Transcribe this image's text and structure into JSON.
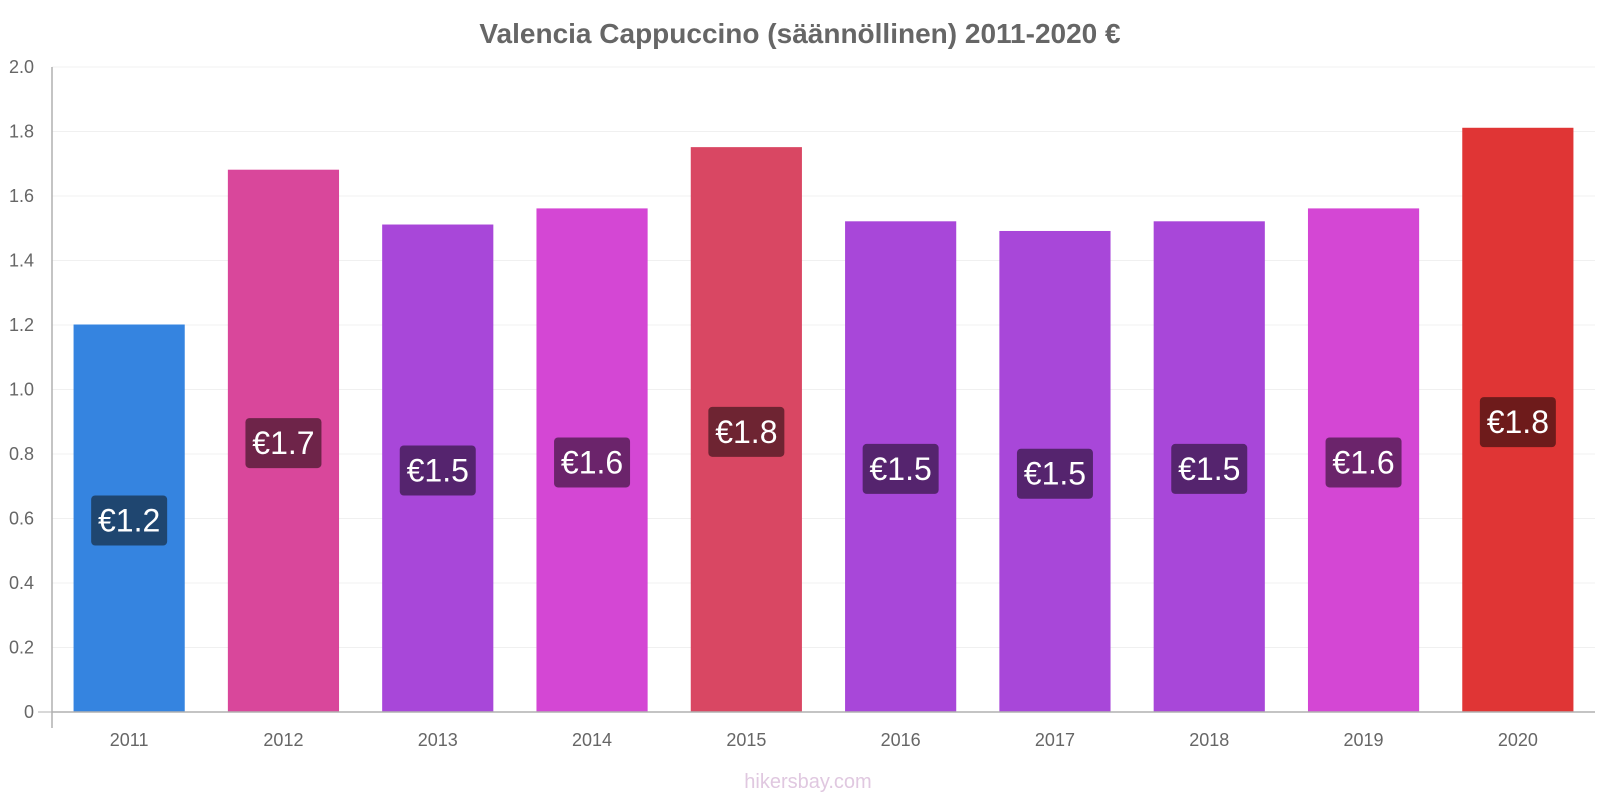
{
  "chart_data": {
    "type": "bar",
    "title": "Valencia Cappuccino (säännöllinen) 2011-2020 €",
    "xlabel": "",
    "ylabel": "",
    "ylim": [
      0,
      2.0
    ],
    "yticks": [
      0,
      0.2,
      0.4,
      0.6,
      0.8,
      1.0,
      1.2,
      1.4,
      1.6,
      1.8,
      2.0
    ],
    "ytick_labels": [
      "0",
      "0.2",
      "0.4",
      "0.6",
      "0.8",
      "1.0",
      "1.2",
      "1.4",
      "1.6",
      "1.8",
      "2.0"
    ],
    "categories": [
      "2011",
      "2012",
      "2013",
      "2014",
      "2015",
      "2016",
      "2017",
      "2018",
      "2019",
      "2020"
    ],
    "values": [
      1.2,
      1.68,
      1.51,
      1.56,
      1.75,
      1.52,
      1.49,
      1.52,
      1.56,
      1.81
    ],
    "data_labels": [
      "€1.2",
      "€1.7",
      "€1.5",
      "€1.6",
      "€1.8",
      "€1.5",
      "€1.5",
      "€1.5",
      "€1.6",
      "€1.8"
    ],
    "bar_colors": [
      "#3584e0",
      "#d9479b",
      "#a847d9",
      "#d447d4",
      "#d94763",
      "#a847d9",
      "#a847d9",
      "#a847d9",
      "#d447d4",
      "#e03535"
    ],
    "label_colors": [
      "#1f4670",
      "#6e2449",
      "#55246e",
      "#6b246b",
      "#6e2432",
      "#55246e",
      "#55246e",
      "#55246e",
      "#6b246b",
      "#6e1b1b"
    ],
    "grid": true,
    "legend": "none"
  },
  "footer": {
    "credit": "hikersbay.com"
  }
}
